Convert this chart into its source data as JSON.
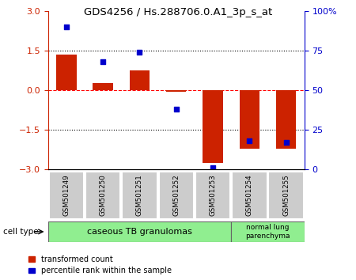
{
  "title": "GDS4256 / Hs.288706.0.A1_3p_s_at",
  "samples": [
    "GSM501249",
    "GSM501250",
    "GSM501251",
    "GSM501252",
    "GSM501253",
    "GSM501254",
    "GSM501255"
  ],
  "red_values": [
    1.35,
    0.28,
    0.75,
    -0.05,
    -2.75,
    -2.2,
    -2.2
  ],
  "blue_percentiles": [
    90,
    68,
    74,
    38,
    1,
    18,
    17
  ],
  "ylim_left": [
    -3,
    3
  ],
  "ylim_right": [
    0,
    100
  ],
  "left_yticks": [
    -3,
    -1.5,
    0,
    1.5,
    3
  ],
  "right_yticks": [
    0,
    25,
    50,
    75,
    100
  ],
  "right_yticklabels": [
    "0",
    "25",
    "50",
    "75",
    "100%"
  ],
  "hlines_y": [
    1.5,
    0,
    -1.5
  ],
  "hlines_styles": [
    "dotted",
    "dashed",
    "dotted"
  ],
  "hlines_colors": [
    "black",
    "red",
    "black"
  ],
  "bar_color": "#cc2200",
  "dot_color": "#0000cc",
  "group1_label": "caseous TB granulomas",
  "group2_label": "normal lung\nparenchyma",
  "cell_type_label": "cell type",
  "group_color": "#90ee90",
  "legend_red_label": "transformed count",
  "legend_blue_label": "percentile rank within the sample",
  "bar_width": 0.55,
  "tick_label_color_left": "#cc2200",
  "tick_label_color_right": "#0000cc",
  "sample_box_color": "#cccccc",
  "bg_color": "#ffffff"
}
